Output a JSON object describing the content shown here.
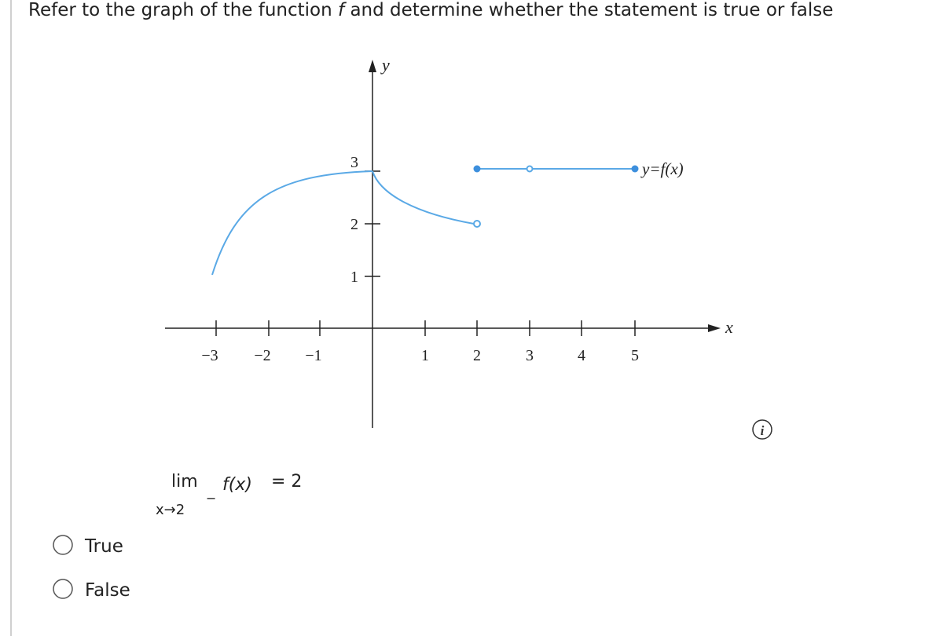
{
  "question": {
    "title_before": "Refer to the graph of the function",
    "title_var": "f",
    "title_after": "and determine whether the statement is true or false"
  },
  "graph": {
    "y_axis_label": "y",
    "x_axis_label": "x",
    "curve_label": "y=f(x)",
    "xticks": [
      "−3",
      "−2",
      "−1",
      "1",
      "2",
      "3",
      "4",
      "5"
    ],
    "yticks": [
      "1",
      "2",
      "3"
    ]
  },
  "statement": {
    "lim": "lim",
    "approach": "x→2",
    "side": "−",
    "function": "f(x)",
    "rhs": "= 2"
  },
  "options": [
    "True",
    "False"
  ],
  "info_icon": "i"
}
